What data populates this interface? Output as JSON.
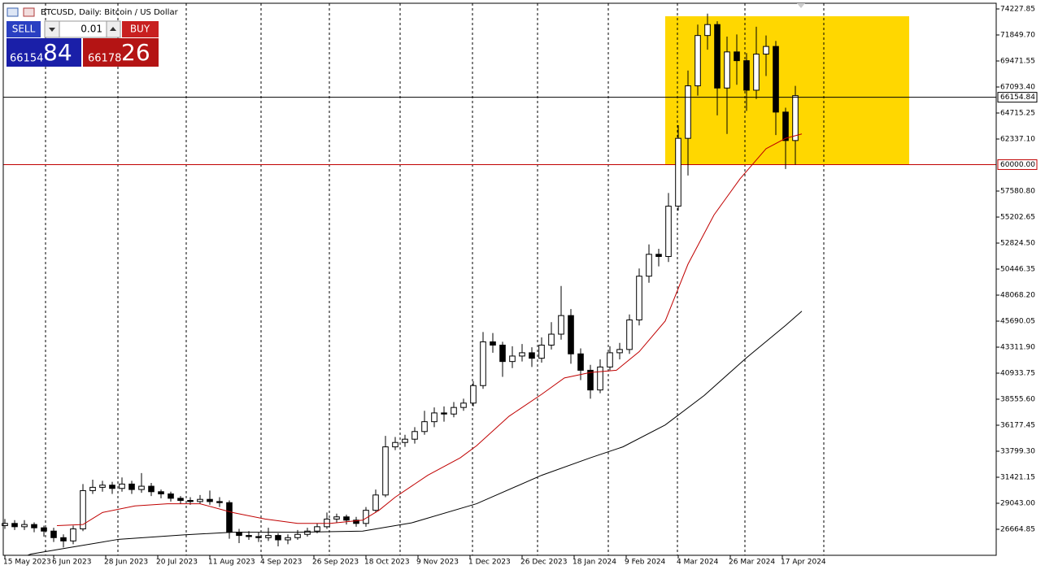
{
  "header": {
    "title": "BTCUSD, Daily:  Bitcoin / US Dollar"
  },
  "trade_panel": {
    "sell": "SELL",
    "buy": "BUY",
    "lot": "0.01",
    "sell_price_main": "66154",
    "sell_price_big": "84",
    "buy_price_main": "66178",
    "buy_price_big": "26"
  },
  "chart_data": {
    "type": "candlestick",
    "xlim": [
      -0.5,
      304.75
    ],
    "ylim": [
      24287,
      74748
    ],
    "yticks": [
      74227.85,
      {
        "value": 71849.7,
        "label": "71849.70"
      },
      69471.55,
      {
        "value": 67093.4,
        "label": "67093.40"
      },
      64715.25,
      {
        "value": 62337.1,
        "label": "62337.10"
      },
      {
        "value": 57580.8,
        "label": "57580.80"
      },
      55202.65,
      {
        "value": 52824.5,
        "label": "52824.50"
      },
      50446.35,
      {
        "value": 48068.2,
        "label": "48068.20"
      },
      45690.05,
      {
        "value": 43311.9,
        "label": "43311.90"
      },
      40933.75,
      {
        "value": 38555.6,
        "label": "38555.60"
      },
      36177.45,
      {
        "value": 33799.3,
        "label": "33799.30"
      },
      31421.15,
      {
        "value": 29043,
        "label": "29043.00"
      },
      26664.85
    ],
    "xticks": [
      {
        "value": 0,
        "label": "15 May 2023"
      },
      {
        "value": 15,
        "label": "6 Jun 2023"
      },
      {
        "value": 31,
        "label": "28 Jun 2023"
      },
      {
        "value": 47,
        "label": "20 Jul 2023"
      },
      {
        "value": 63,
        "label": "11 Aug 2023"
      },
      {
        "value": 79,
        "label": "4 Sep 2023"
      },
      {
        "value": 95,
        "label": "26 Sep 2023"
      },
      {
        "value": 111,
        "label": "18 Oct 2023"
      },
      {
        "value": 127,
        "label": "9 Nov 2023"
      },
      {
        "value": 143,
        "label": "1 Dec 2023"
      },
      {
        "value": 159,
        "label": "26 Dec 2023"
      },
      {
        "value": 175,
        "label": "18 Jan 2024"
      },
      {
        "value": 191,
        "label": "9 Feb 2024"
      },
      {
        "value": 207,
        "label": "4 Mar 2024"
      },
      {
        "value": 223,
        "label": "26 Mar 2024"
      },
      {
        "value": 239,
        "label": "17 Apr 2024"
      }
    ],
    "x": [
      0,
      3,
      6,
      9,
      12,
      15,
      18,
      21,
      24,
      27,
      30,
      33,
      36,
      39,
      42,
      45,
      48,
      51,
      54,
      57,
      60,
      63,
      66,
      69,
      72,
      75,
      78,
      81,
      84,
      87,
      90,
      93,
      96,
      99,
      102,
      105,
      108,
      111,
      114,
      117,
      120,
      123,
      126,
      129,
      132,
      135,
      138,
      141,
      144,
      147,
      150,
      153,
      156,
      159,
      162,
      165,
      168,
      171,
      174,
      177,
      180,
      183,
      186,
      189,
      192,
      195,
      198,
      201,
      204,
      207,
      210,
      213,
      216,
      219,
      222,
      225,
      228,
      231,
      234,
      237,
      240,
      243
    ],
    "open": [
      27000,
      27200,
      26900,
      27100,
      26800,
      26500,
      25900,
      25600,
      26700,
      30200,
      30500,
      30700,
      30400,
      30800,
      30300,
      30600,
      30100,
      29900,
      29500,
      29300,
      29200,
      29400,
      29200,
      29100,
      26400,
      26100,
      26000,
      25900,
      26100,
      25700,
      25900,
      26200,
      26500,
      26900,
      27600,
      27800,
      27500,
      27200,
      28400,
      29800,
      34200,
      34600,
      34900,
      35600,
      36500,
      37300,
      37200,
      37800,
      38200,
      39800,
      43800,
      43500,
      42000,
      42500,
      42800,
      42300,
      43500,
      44500,
      46200,
      42700,
      41200,
      39400,
      41500,
      42800,
      43100,
      45800,
      49800,
      51800,
      51600,
      56200,
      62400,
      67200,
      71800,
      72800,
      67000,
      70300,
      69500,
      66800,
      70100,
      70800,
      64800,
      62200
    ],
    "high": [
      27600,
      27500,
      27500,
      27300,
      27000,
      26800,
      26200,
      27000,
      30800,
      31200,
      31100,
      31000,
      31400,
      31100,
      31800,
      30900,
      30300,
      30100,
      29700,
      29600,
      29800,
      30200,
      29600,
      29300,
      26700,
      26500,
      26400,
      26800,
      26300,
      26200,
      26600,
      26800,
      27200,
      28200,
      28100,
      28000,
      27800,
      28700,
      30300,
      35200,
      35100,
      35300,
      36000,
      37500,
      37800,
      37900,
      38300,
      38600,
      40200,
      44700,
      44600,
      43800,
      43400,
      43600,
      43300,
      44200,
      45600,
      48900,
      46800,
      43200,
      41700,
      42200,
      43400,
      43700,
      46300,
      50500,
      52700,
      52300,
      57400,
      63600,
      68600,
      72800,
      73800,
      73100,
      71700,
      71900,
      70200,
      72600,
      71800,
      71300,
      65200,
      67200
    ],
    "low": [
      26700,
      26600,
      26600,
      26400,
      26000,
      25500,
      25000,
      25300,
      26500,
      29900,
      30100,
      29900,
      30100,
      29900,
      30000,
      29700,
      29500,
      29200,
      29000,
      28900,
      29000,
      28900,
      28700,
      25800,
      25400,
      25700,
      25500,
      25600,
      25100,
      25300,
      25700,
      26000,
      26300,
      26700,
      27300,
      27100,
      26900,
      26900,
      28200,
      29600,
      33900,
      34200,
      34500,
      35300,
      36000,
      36500,
      36900,
      37500,
      37900,
      39500,
      42800,
      40600,
      41400,
      42000,
      41500,
      41900,
      43100,
      44000,
      41800,
      40300,
      38600,
      39100,
      41200,
      42200,
      42700,
      45300,
      49200,
      50700,
      51100,
      55800,
      59000,
      66300,
      70500,
      64500,
      62800,
      67300,
      64900,
      66000,
      68100,
      62700,
      59600,
      60000
    ],
    "close": [
      27200,
      26900,
      27100,
      26800,
      26500,
      25900,
      25600,
      26700,
      30200,
      30500,
      30700,
      30400,
      30800,
      30300,
      30600,
      30100,
      29900,
      29500,
      29300,
      29200,
      29400,
      29200,
      29100,
      26400,
      26100,
      26000,
      25900,
      26100,
      25700,
      25900,
      26200,
      26500,
      26900,
      27600,
      27800,
      27500,
      27200,
      28400,
      29800,
      34200,
      34600,
      34900,
      35600,
      36500,
      37300,
      37200,
      37800,
      38200,
      39800,
      43800,
      43500,
      42000,
      42500,
      42800,
      42300,
      43500,
      44500,
      46200,
      42700,
      41200,
      39400,
      41500,
      42800,
      43100,
      45800,
      49800,
      51800,
      51600,
      56200,
      62400,
      67200,
      71800,
      72800,
      67000,
      70300,
      69500,
      66800,
      70100,
      70800,
      64800,
      62200,
      66300
    ],
    "up_color": "#ffffff",
    "down_color": "#000000",
    "series": [
      {
        "color": "#c00000",
        "x": [
          16,
          24,
          30,
          40,
          50,
          60,
          70,
          80,
          90,
          100,
          110,
          115,
          120,
          130,
          140,
          145,
          155,
          165,
          172,
          180,
          188,
          195,
          203,
          210,
          218,
          226,
          234,
          240,
          245
        ],
        "values": [
          27000,
          27100,
          28200,
          28800,
          29000,
          29000,
          28200,
          27600,
          27200,
          27200,
          27500,
          28400,
          29600,
          31600,
          33200,
          34300,
          37000,
          39000,
          40500,
          41000,
          41200,
          42900,
          45700,
          50900,
          55400,
          58700,
          61450,
          62400,
          62800
        ]
      },
      {
        "color": "#000000",
        "x": [
          7,
          8,
          20,
          35,
          55,
          70,
          90,
          110,
          125,
          145,
          165,
          180,
          190,
          203,
          215,
          228,
          240,
          245
        ],
        "values": [
          24290,
          24400,
          25000,
          25750,
          26150,
          26400,
          26400,
          26500,
          27250,
          29000,
          31600,
          33200,
          34200,
          36200,
          38900,
          42350,
          45300,
          46600
        ]
      }
    ],
    "price_line": {
      "value": 66154.84,
      "color": "#000000"
    },
    "level_line": {
      "value": 60000,
      "label": "60000.00",
      "color": "#c00000"
    },
    "zone": {
      "x": [
        203,
        278
      ],
      "y": [
        60000,
        73560
      ],
      "color": "#ffd700"
    }
  }
}
